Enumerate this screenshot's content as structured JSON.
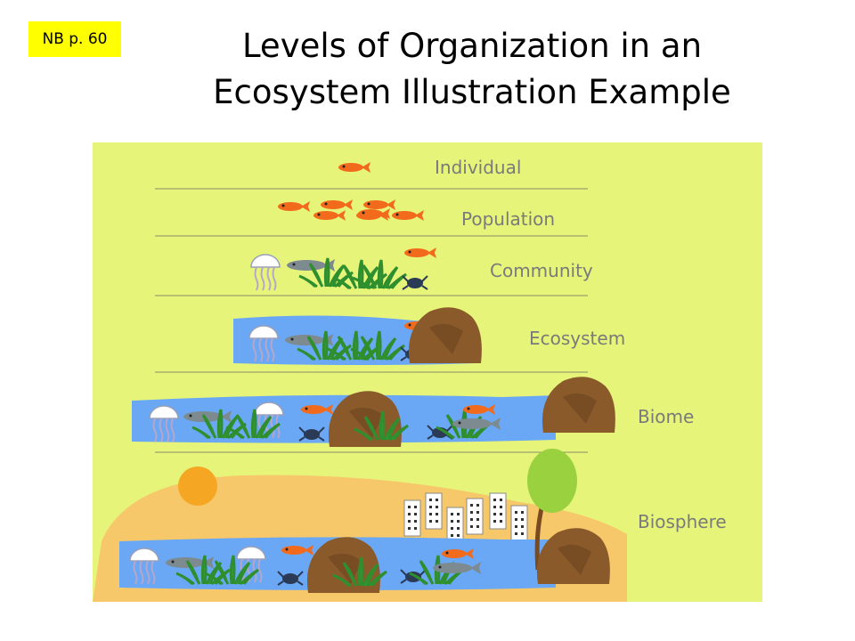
{
  "tag": "NB p. 60",
  "title": {
    "line1": "Levels of Organization in an",
    "line2": "Ecosystem Illustration Example"
  },
  "levels": {
    "individual": "Individual",
    "population": "Population",
    "community": "Community",
    "ecosystem": "Ecosystem",
    "biome": "Biome",
    "biosphere": "Biosphere"
  },
  "colors": {
    "panel": "#e6f57a",
    "fish": "#f26a1b",
    "water": "#6aa8f5",
    "rock": "#8a5a2b",
    "land": "#f7c86a",
    "sun": "#f5a623",
    "tree": "#9ad13e"
  }
}
